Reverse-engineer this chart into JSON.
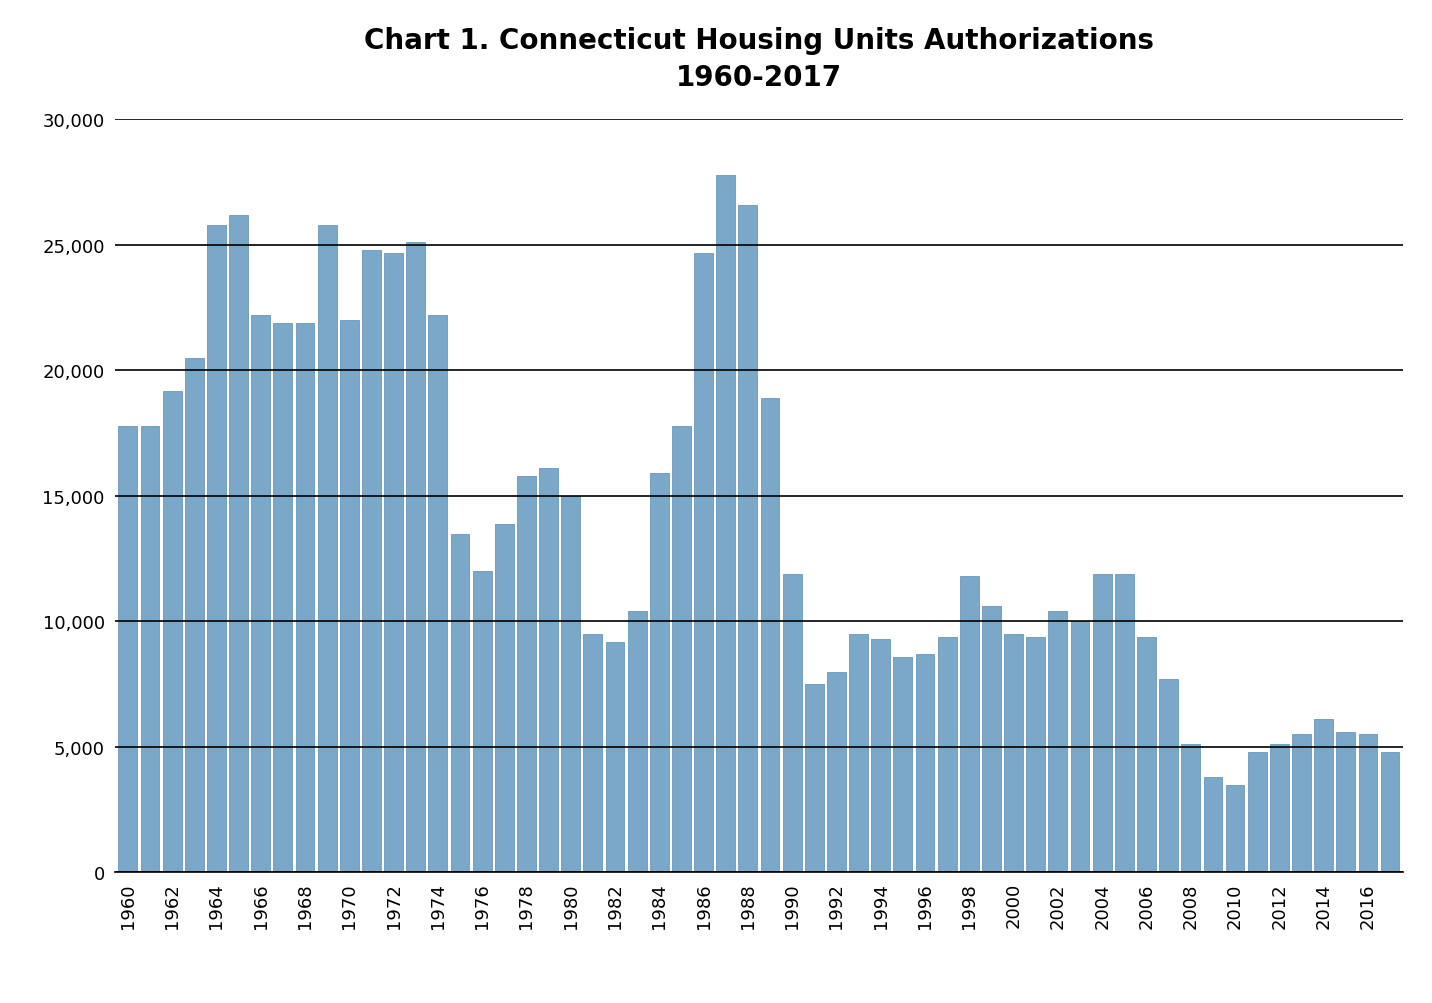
{
  "title": "Chart 1. Connecticut Housing Units Authorizations\n1960-2017",
  "years": [
    1960,
    1961,
    1962,
    1963,
    1964,
    1965,
    1966,
    1967,
    1968,
    1969,
    1970,
    1971,
    1972,
    1973,
    1974,
    1975,
    1976,
    1977,
    1978,
    1979,
    1980,
    1981,
    1982,
    1983,
    1984,
    1985,
    1986,
    1987,
    1988,
    1989,
    1990,
    1991,
    1992,
    1993,
    1994,
    1995,
    1996,
    1997,
    1998,
    1999,
    2000,
    2001,
    2002,
    2003,
    2004,
    2005,
    2006,
    2007,
    2008,
    2009,
    2010,
    2011,
    2012,
    2013,
    2014,
    2015,
    2016,
    2017
  ],
  "values": [
    17800,
    17800,
    19200,
    20500,
    25800,
    26200,
    22200,
    21900,
    21900,
    25800,
    22000,
    24800,
    24700,
    25100,
    22200,
    13500,
    12000,
    13900,
    15800,
    16100,
    15000,
    9500,
    9200,
    10400,
    15900,
    17800,
    24700,
    27800,
    26600,
    18900,
    11900,
    7500,
    8000,
    9500,
    9300,
    8600,
    8700,
    9400,
    11800,
    10600,
    9500,
    9400,
    10400,
    10000,
    11900,
    11900,
    9400,
    7700,
    5100,
    3800,
    3500,
    4800,
    5100,
    5500,
    6100,
    5600,
    5500,
    4800
  ],
  "bar_color": "#7ba7c9",
  "bar_edgecolor": "#5a8db5",
  "ylim": [
    0,
    30000
  ],
  "yticks": [
    0,
    5000,
    10000,
    15000,
    20000,
    25000,
    30000
  ],
  "background_color": "#ffffff",
  "title_fontsize": 20,
  "tick_fontsize": 13,
  "grid_color": "#000000",
  "grid_linewidth": 1.2
}
